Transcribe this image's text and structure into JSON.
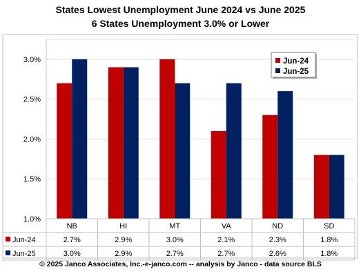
{
  "chart_data": {
    "type": "bar",
    "title": "States Lowest Unemployment June 2024 vs June 2025",
    "subtitle": "6 States  Unemployment 3.0% or Lower",
    "categories": [
      "NB",
      "HI",
      "MT",
      "VA",
      "ND",
      "SD"
    ],
    "series": [
      {
        "name": "Jun-24",
        "color": "#C00000",
        "values": [
          2.7,
          2.9,
          3.0,
          2.1,
          2.3,
          1.8
        ],
        "labels": [
          "2.7%",
          "2.9%",
          "3.0%",
          "2.1%",
          "2.3%",
          "1.8%"
        ]
      },
      {
        "name": "Jun-25",
        "color": "#002060",
        "values": [
          3.0,
          2.9,
          2.7,
          2.7,
          2.6,
          1.8
        ],
        "labels": [
          "3.0%",
          "2.9%",
          "2.7%",
          "2.7%",
          "2.6%",
          "1.8%"
        ]
      }
    ],
    "ylim": [
      1.0,
      3.25
    ],
    "yticks": [
      1.0,
      1.5,
      2.0,
      2.5,
      3.0
    ],
    "ytick_labels": [
      "1.0%",
      "1.5%",
      "2.0%",
      "2.5%",
      "3.0%"
    ],
    "grid": true,
    "legend": "top-right",
    "data_table": true,
    "footer": "© 2025 Janco Associates, Inc.-e-janco.com -- analysis by Janco - data source BLS"
  }
}
